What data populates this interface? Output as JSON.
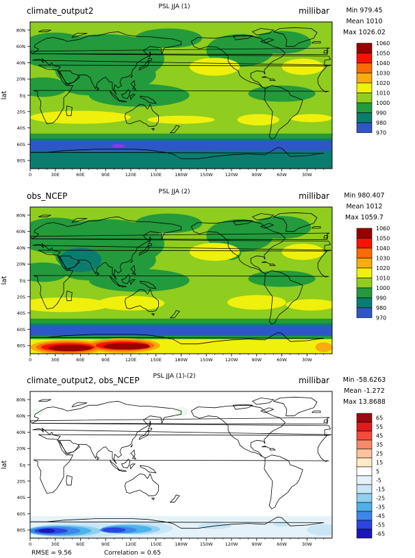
{
  "colors": {
    "c970": "#9b2ff5",
    "c980": "#2d57c7",
    "c990": "#0b7d6f",
    "c1000": "#239a3c",
    "c1010": "#8fcd1f",
    "c1020": "#eff00c",
    "c1030": "#f9ac0d",
    "c1040": "#fb6a05",
    "c1050": "#f81200",
    "c1060": "#980000",
    "d65": "#9b0a12",
    "d55": "#e31a1c",
    "d45": "#f54b3c",
    "d35": "#f98a69",
    "d25": "#fcc39d",
    "d15": "#feeac6",
    "d5": "#edf8ee",
    "d0": "#ffffff",
    "dm5": "#e6f2fa",
    "dm15": "#c8e6f6",
    "dm25": "#8fd0f0",
    "dm35": "#4eb1ea",
    "dm45": "#3d87e8",
    "dm55": "#2a45e0",
    "dm65": "#1c16b9"
  },
  "panels": [
    {
      "left_title": "climate_output2",
      "center_title": "PSL JJA (1)",
      "units": "millibar",
      "stats": [
        "Min 979.45",
        "Mean 1010",
        "Max 1026.02"
      ],
      "legend_labels": [
        "1060",
        "1050",
        "1040",
        "1030",
        "1020",
        "1010",
        "1000",
        "990",
        "980",
        "970"
      ]
    },
    {
      "left_title": "obs_NCEP",
      "center_title": "PSL JJA (2)",
      "units": "millibar",
      "stats": [
        "Min 980.407",
        "Mean 1012",
        "Max 1059.7"
      ],
      "legend_labels": [
        "1060",
        "1050",
        "1040",
        "1030",
        "1020",
        "1010",
        "1000",
        "990",
        "980",
        "970"
      ]
    },
    {
      "left_title": "climate_output2, obs_NCEP",
      "center_title": "PSL JJA (1)-(2)",
      "units": "millibar",
      "stats": [
        "Min -58.6263",
        "Mean -1.272",
        "Max 13.8688"
      ],
      "legend_labels": [
        "65",
        "55",
        "45",
        "35",
        "25",
        "15",
        "5",
        "-5",
        "-15",
        "-25",
        "-35",
        "-45",
        "-55",
        "-65"
      ],
      "footer": {
        "rmse": "RMSE = 9.56",
        "correlation": "Correlation = 0.65"
      }
    }
  ],
  "axes": {
    "ylabel": "lat",
    "lat_ticks": [
      "80N",
      "60N",
      "40N",
      "20N",
      "Eq",
      "20S",
      "40S",
      "60S",
      "80S"
    ],
    "lon_ticks": [
      "0",
      "30E",
      "60E",
      "90E",
      "120E",
      "150E",
      "180W",
      "150W",
      "120W",
      "90W",
      "60W",
      "30W"
    ]
  }
}
